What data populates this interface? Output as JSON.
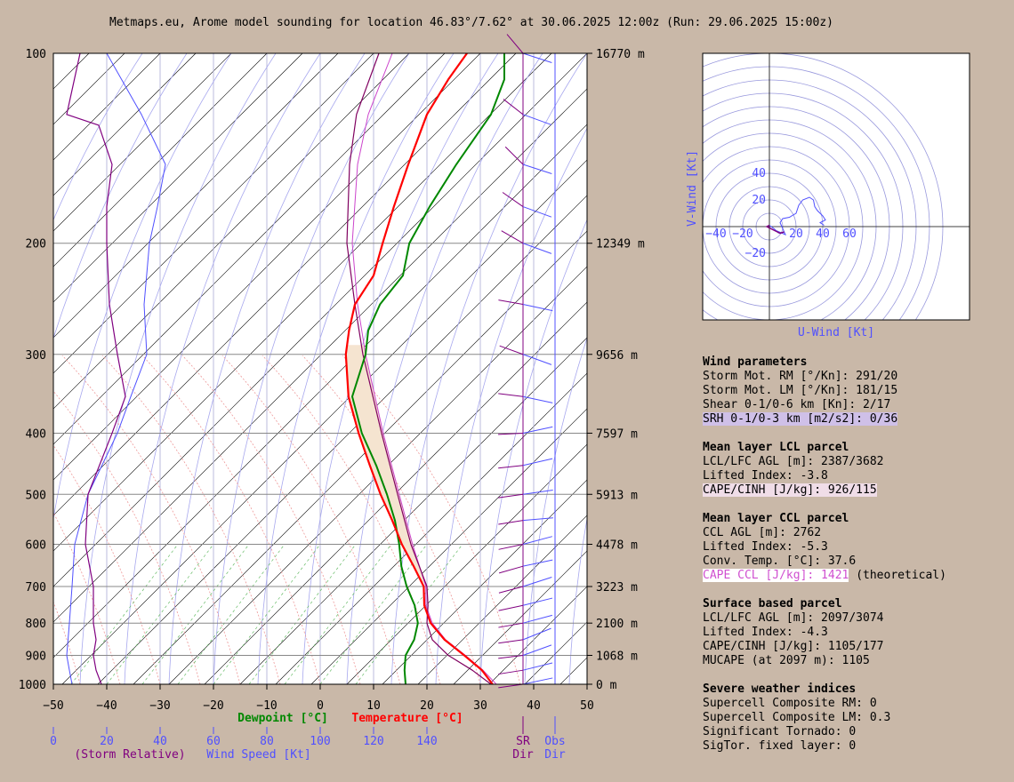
{
  "title": "Metmaps.eu, Arome model sounding for location 46.83°/7.62° at 30.06.2025 12:00z (Run: 29.06.2025 15:00z)",
  "colors": {
    "temperature": "#ff0000",
    "dewpoint": "#008800",
    "parcel": "#800060",
    "virtual_temp": "#cc44cc",
    "wind_speed": "#5050ff",
    "storm_relative": "#800080",
    "background": "#c9b8a8",
    "cape_fill": "#f5e4d0"
  },
  "chart_data": [
    {
      "type": "line",
      "name": "skewT",
      "pressure_levels": [
        100,
        200,
        300,
        400,
        500,
        600,
        700,
        800,
        900,
        1000
      ],
      "pressure_labels": [
        "100",
        "200",
        "300",
        "400",
        "500",
        "600",
        "700",
        "800",
        "900",
        "1000"
      ],
      "height_labels": [
        "16770 m",
        "12349 m",
        "9656 m",
        "7597 m",
        "5913 m",
        "4478 m",
        "3223 m",
        "2100 m",
        "1068 m",
        "0 m"
      ],
      "x_ticks": [
        -50,
        -40,
        -30,
        -20,
        -10,
        0,
        10,
        20,
        30,
        40,
        50
      ],
      "x_tick_labels": [
        "−50",
        "−40",
        "−30",
        "−20",
        "−10",
        "0",
        "10",
        "20",
        "30",
        "40",
        "50"
      ],
      "xlim": [
        -50,
        50
      ],
      "ylim": [
        1000,
        100
      ],
      "xlabel_dewpoint": "Dewpoint [°C]",
      "xlabel_temperature": "Temperature [°C]",
      "wind_ticks": [
        0,
        20,
        40,
        60,
        80,
        100,
        120,
        140
      ],
      "wind_label_storm": "(Storm Relative)",
      "wind_label_speed": "Wind Speed [Kt]",
      "sr_label": [
        "SR",
        "Dir"
      ],
      "obs_label": [
        "Obs",
        "Dir"
      ],
      "series": {
        "temperature": [
          [
            1000,
            32.3
          ],
          [
            950,
            30.3
          ],
          [
            900,
            27
          ],
          [
            850,
            23.3
          ],
          [
            800,
            20.7
          ],
          [
            750,
            19.5
          ],
          [
            700,
            19.4
          ],
          [
            650,
            17.5
          ],
          [
            600,
            15.3
          ],
          [
            550,
            13.5
          ],
          [
            500,
            11.3
          ],
          [
            450,
            9.3
          ],
          [
            400,
            7.2
          ],
          [
            350,
            5.3
          ],
          [
            300,
            4.8
          ],
          [
            275,
            5.4
          ],
          [
            250,
            6.5
          ],
          [
            225,
            10
          ],
          [
            200,
            11.7
          ],
          [
            175,
            13.8
          ],
          [
            150,
            16.5
          ],
          [
            125,
            20
          ],
          [
            110,
            24
          ],
          [
            100,
            27.5
          ]
        ],
        "dewpoint": [
          [
            1000,
            16
          ],
          [
            950,
            15.8
          ],
          [
            900,
            16
          ],
          [
            850,
            17.6
          ],
          [
            800,
            18.3
          ],
          [
            750,
            17.7
          ],
          [
            700,
            16.2
          ],
          [
            650,
            15.2
          ],
          [
            600,
            14.8
          ],
          [
            550,
            14
          ],
          [
            500,
            12.5
          ],
          [
            450,
            10.5
          ],
          [
            400,
            7.8
          ],
          [
            350,
            6
          ],
          [
            300,
            8.5
          ],
          [
            275,
            9
          ],
          [
            250,
            11.2
          ],
          [
            225,
            15.5
          ],
          [
            200,
            16.7
          ],
          [
            175,
            20.5
          ],
          [
            150,
            25.5
          ],
          [
            125,
            32
          ],
          [
            110,
            34.5
          ],
          [
            100,
            34.5
          ]
        ],
        "parcel": [
          [
            1000,
            32
          ],
          [
            950,
            28.5
          ],
          [
            900,
            24
          ],
          [
            850,
            21
          ],
          [
            800,
            20
          ],
          [
            750,
            20.2
          ],
          [
            700,
            20
          ],
          [
            600,
            17
          ],
          [
            500,
            14.5
          ],
          [
            400,
            11.5
          ],
          [
            300,
            8
          ],
          [
            250,
            6.5
          ],
          [
            200,
            5
          ],
          [
            150,
            5.5
          ],
          [
            125,
            6.8
          ],
          [
            100,
            11
          ]
        ],
        "virtual_temp": [
          [
            1000,
            33
          ],
          [
            950,
            30.5
          ],
          [
            900,
            27.2
          ],
          [
            850,
            23.5
          ],
          [
            800,
            21
          ],
          [
            750,
            19.8
          ],
          [
            700,
            19.8
          ],
          [
            600,
            17.3
          ],
          [
            500,
            14.8
          ],
          [
            400,
            11.8
          ],
          [
            300,
            8.5
          ],
          [
            250,
            7
          ],
          [
            200,
            6
          ],
          [
            150,
            7
          ],
          [
            125,
            9
          ],
          [
            100,
            13.5
          ]
        ],
        "wind_speed": [
          [
            1000,
            7
          ],
          [
            950,
            6
          ],
          [
            900,
            5
          ],
          [
            850,
            5.5
          ],
          [
            800,
            6
          ],
          [
            700,
            7
          ],
          [
            600,
            8
          ],
          [
            500,
            13
          ],
          [
            400,
            24
          ],
          [
            350,
            29
          ],
          [
            300,
            35
          ],
          [
            250,
            34
          ],
          [
            200,
            36
          ],
          [
            175,
            39
          ],
          [
            150,
            42
          ],
          [
            125,
            33
          ],
          [
            100,
            20
          ]
        ],
        "storm_relative_speed": [
          [
            1000,
            18
          ],
          [
            950,
            16
          ],
          [
            900,
            15
          ],
          [
            850,
            16
          ],
          [
            800,
            15
          ],
          [
            700,
            15
          ],
          [
            600,
            12
          ],
          [
            500,
            13
          ],
          [
            400,
            22
          ],
          [
            350,
            27
          ],
          [
            300,
            24
          ],
          [
            250,
            21
          ],
          [
            200,
            20
          ],
          [
            175,
            20
          ],
          [
            150,
            22
          ],
          [
            130,
            17
          ],
          [
            125,
            5
          ],
          [
            100,
            10
          ]
        ],
        "sr_dir": [
          [
            1000,
            8
          ],
          [
            950,
            9
          ],
          [
            900,
            7
          ],
          [
            850,
            8
          ],
          [
            800,
            10
          ],
          [
            750,
            12
          ],
          [
            700,
            15
          ],
          [
            650,
            16
          ],
          [
            600,
            12
          ],
          [
            550,
            9
          ],
          [
            500,
            8
          ],
          [
            450,
            6
          ],
          [
            400,
            3
          ],
          [
            350,
            -7
          ],
          [
            300,
            -20
          ],
          [
            250,
            -10
          ],
          [
            200,
            -30
          ],
          [
            175,
            -35
          ],
          [
            150,
            -45
          ],
          [
            125,
            -38
          ],
          [
            100,
            -50
          ]
        ],
        "obs_dir": [
          [
            1000,
            12
          ],
          [
            950,
            14
          ],
          [
            900,
            20
          ],
          [
            850,
            22
          ],
          [
            800,
            15
          ],
          [
            750,
            14
          ],
          [
            700,
            18
          ],
          [
            650,
            12
          ],
          [
            600,
            15
          ],
          [
            550,
            5
          ],
          [
            500,
            8
          ],
          [
            450,
            13
          ],
          [
            400,
            12
          ],
          [
            350,
            -12
          ],
          [
            300,
            -20
          ],
          [
            250,
            -12
          ],
          [
            200,
            -20
          ],
          [
            175,
            -20
          ],
          [
            150,
            -18
          ],
          [
            125,
            -20
          ],
          [
            100,
            -18
          ]
        ]
      }
    },
    {
      "type": "line",
      "name": "hodograph",
      "xlabel": "U-Wind [Kt]",
      "ylabel": "V-Wind [Kt]",
      "x_tick_labels": [
        "−40",
        "−20",
        "20",
        "40",
        "60"
      ],
      "x_tick_values": [
        -40,
        -20,
        20,
        40,
        60
      ],
      "y_tick_labels": [
        "40",
        "20",
        "−20"
      ],
      "y_tick_values": [
        40,
        20,
        -20
      ],
      "rings": [
        10,
        20,
        30,
        40,
        50,
        60,
        70,
        80,
        90,
        100,
        110,
        120,
        130
      ],
      "xlim": [
        -50,
        150
      ],
      "ylim": [
        -70,
        130
      ],
      "points": [
        [
          0,
          1
        ],
        [
          4,
          -2
        ],
        [
          7,
          -5
        ],
        [
          5,
          -3
        ],
        [
          12,
          -6
        ],
        [
          8,
          3
        ],
        [
          10,
          6
        ],
        [
          15,
          7
        ],
        [
          20,
          10
        ],
        [
          22,
          16
        ],
        [
          25,
          20
        ],
        [
          30,
          22
        ],
        [
          33,
          20
        ],
        [
          34,
          15
        ],
        [
          36,
          12
        ],
        [
          40,
          8
        ],
        [
          42,
          5
        ],
        [
          38,
          3
        ],
        [
          41,
          1
        ]
      ],
      "points_low": [
        [
          0,
          1
        ],
        [
          -2,
          0
        ],
        [
          2,
          -2
        ],
        [
          6,
          -4
        ],
        [
          8,
          -5
        ],
        [
          11,
          -4
        ]
      ]
    }
  ],
  "panel": {
    "wind": {
      "heading": "Wind parameters",
      "lines": [
        "Storm Mot. RM [°/Kn]: 291/20",
        "Storm Mot. LM [°/Kn]: 181/15",
        "Shear 0-1/0-6 km [Kn]: 2/17"
      ],
      "srh": "SRH 0-1/0-3 km [m2/s2]: 0/36"
    },
    "lcl": {
      "heading": "Mean layer LCL parcel",
      "lines": [
        "LCL/LFC AGL [m]: 2387/3682",
        "Lifted Index: -3.8"
      ],
      "cape": "CAPE/CINH [J/kg]: 926/115"
    },
    "ccl": {
      "heading": "Mean layer CCL parcel",
      "lines": [
        "CCL AGL [m]: 2762",
        "Lifted Index: -5.3",
        "Conv. Temp. [°C]: 37.6"
      ],
      "cape": "CAPE CCL [J/kg]: 1421",
      "cape_suffix": " (theoretical)"
    },
    "sb": {
      "heading": "Surface based parcel",
      "lines": [
        "LCL/LFC AGL [m]: 2097/3074",
        "Lifted Index: -4.3",
        "CAPE/CINH [J/kg]: 1105/177",
        "MUCAPE (at 2097 m): 1105"
      ]
    },
    "severe": {
      "heading": "Severe weather indices",
      "lines": [
        "Supercell Composite RM: 0",
        "Supercell Composite LM: 0.3",
        "Significant Tornado: 0",
        "SigTor. fixed layer: 0"
      ]
    }
  }
}
